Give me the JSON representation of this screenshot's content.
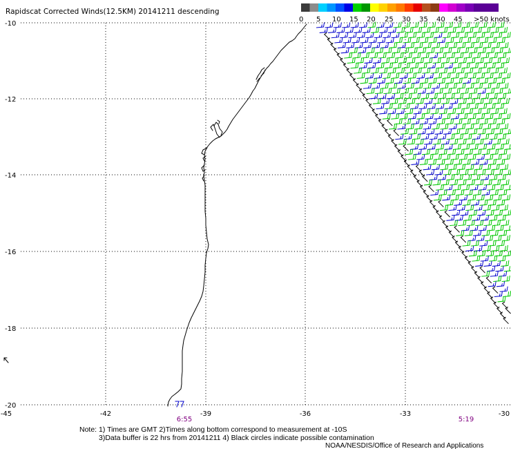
{
  "title": "Rapidscat Corrected Winds(12.5KM) 20141211 descending",
  "legend": {
    "labels": [
      "0",
      "5",
      "10",
      "15",
      "20",
      "25",
      "30",
      "35",
      "40",
      "45",
      ">50 knots"
    ],
    "colors": [
      "#3c3c3c",
      "#8c8c8c",
      "#00d0ff",
      "#0096ff",
      "#0050ff",
      "#0000e6",
      "#00d200",
      "#009600",
      "#ffff00",
      "#ffd200",
      "#ffa000",
      "#ff7800",
      "#ff3c00",
      "#e60000",
      "#b4501e",
      "#8c3c14",
      "#ff00ff",
      "#d200d2",
      "#a000c8",
      "#7800b4",
      "#5a0096"
    ]
  },
  "map": {
    "lat_labels": [
      "-10",
      "-12",
      "-14",
      "-16",
      "-18",
      "-20"
    ],
    "lon_labels": [
      "-45",
      "-42",
      "-39",
      "-36",
      "-33",
      "-30"
    ],
    "lat_range": [
      -20,
      -10
    ],
    "lon_range": [
      -45,
      -30
    ]
  },
  "times": [
    "6:55",
    "5:19"
  ],
  "notes": {
    "line1": "Note: 1) Times are GMT 2)Times along bottom correspond to measurement at -10S",
    "line2": "3)Data buffer is 22 hrs from 20141211 4) Black circles indicate possible contamination",
    "credit": "NOAA/NESDIS/Office of Research and Applications"
  },
  "colors": {
    "barb_green": "#00c800",
    "barb_blue": "#0000cc",
    "barb_black": "#000000",
    "coastline": "#000000",
    "time_label": "#800080"
  }
}
